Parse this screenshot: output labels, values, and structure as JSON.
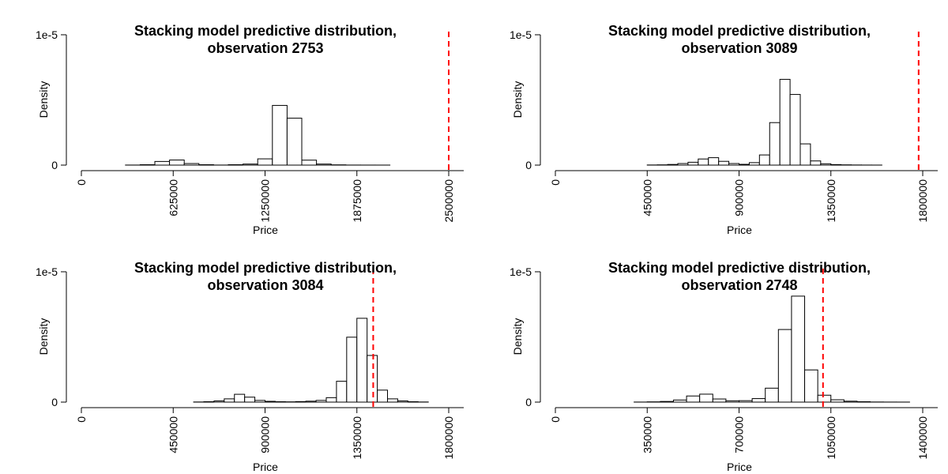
{
  "chart_data": [
    {
      "type": "histogram",
      "title": "Stacking model predictive distribution,",
      "subtitle": "observation 2753",
      "xlabel": "Price",
      "ylabel": "Density",
      "xlim": [
        0,
        2500000
      ],
      "ylim": [
        0,
        1e-05
      ],
      "x_ticks": [
        "0",
        "625000",
        "1250000",
        "1875000",
        "2500000"
      ],
      "y_ticks": [
        "0",
        "1e-5"
      ],
      "bin_width": 100000,
      "bins_start": [
        300000,
        400000,
        500000,
        600000,
        700000,
        800000,
        900000,
        1000000,
        1100000,
        1200000,
        1300000,
        1400000,
        1500000,
        1600000,
        1700000,
        1800000,
        1900000,
        2000000
      ],
      "density": [
        5e-09,
        3e-08,
        2.8e-07,
        3.9e-07,
        1.2e-07,
        3e-08,
        5e-09,
        3e-08,
        8e-08,
        4.8e-07,
        4.58e-06,
        3.6e-06,
        3.8e-07,
        8e-08,
        2e-08,
        5e-09,
        3e-09,
        2e-09
      ],
      "reference_line": 2500000,
      "reference_color": "#ff0000"
    },
    {
      "type": "histogram",
      "title": "Stacking model predictive distribution,",
      "subtitle": "observation 3089",
      "xlabel": "Price",
      "ylabel": "Density",
      "xlim": [
        0,
        1800000
      ],
      "ylim": [
        0,
        1e-05
      ],
      "x_ticks": [
        "0",
        "450000",
        "900000",
        "1350000",
        "1800000"
      ],
      "y_ticks": [
        "0",
        "1e-5"
      ],
      "bin_width": 50000,
      "bins_start": [
        450000,
        500000,
        550000,
        600000,
        650000,
        700000,
        750000,
        800000,
        850000,
        900000,
        950000,
        1000000,
        1050000,
        1100000,
        1150000,
        1200000,
        1250000,
        1300000,
        1350000,
        1400000,
        1450000,
        1500000,
        1550000
      ],
      "density": [
        1e-08,
        2e-08,
        5e-08,
        1.2e-07,
        2.2e-07,
        4.7e-07,
        5.7e-07,
        2.9e-07,
        1.2e-07,
        6e-08,
        1.9e-07,
        7.8e-07,
        3.26e-06,
        6.58e-06,
        5.42e-06,
        1.63e-06,
        3.2e-07,
        1e-07,
        4e-08,
        2e-08,
        1e-08,
        5e-09,
        3e-09
      ],
      "reference_line": 1780000,
      "reference_color": "#ff0000"
    },
    {
      "type": "histogram",
      "title": "Stacking model predictive distribution,",
      "subtitle": "observation 3084",
      "xlabel": "Price",
      "ylabel": "Density",
      "xlim": [
        0,
        1800000
      ],
      "ylim": [
        0,
        1e-05
      ],
      "x_ticks": [
        "0",
        "450000",
        "900000",
        "1350000",
        "1800000"
      ],
      "y_ticks": [
        "0",
        "1e-5"
      ],
      "bin_width": 50000,
      "bins_start": [
        550000,
        600000,
        650000,
        700000,
        750000,
        800000,
        850000,
        900000,
        950000,
        1000000,
        1050000,
        1100000,
        1150000,
        1200000,
        1250000,
        1300000,
        1350000,
        1400000,
        1450000,
        1500000,
        1550000,
        1600000,
        1650000
      ],
      "density": [
        1e-08,
        3e-08,
        9e-08,
        2.5e-07,
        6e-07,
        3.8e-07,
        1.3e-07,
        6e-08,
        3e-08,
        2e-08,
        4e-08,
        7e-08,
        1.3e-07,
        3.4e-07,
        1.6e-06,
        4.98e-06,
        6.43e-06,
        3.58e-06,
        9.2e-07,
        2.5e-07,
        9e-08,
        3e-08,
        1e-08
      ],
      "reference_line": 1430000,
      "reference_color": "#ff0000"
    },
    {
      "type": "histogram",
      "title": "Stacking model predictive distribution,",
      "subtitle": "observation 2748",
      "xlabel": "Price",
      "ylabel": "Density",
      "xlim": [
        0,
        1400000
      ],
      "ylim": [
        0,
        1e-05
      ],
      "x_ticks": [
        "0",
        "350000",
        "700000",
        "1050000",
        "1400000"
      ],
      "y_ticks": [
        "0",
        "1e-5"
      ],
      "bin_width": 50000,
      "bins_start": [
        300000,
        350000,
        400000,
        450000,
        500000,
        550000,
        600000,
        650000,
        700000,
        750000,
        800000,
        850000,
        900000,
        950000,
        1000000,
        1050000,
        1100000,
        1150000,
        1200000,
        1250000,
        1300000
      ],
      "density": [
        5e-09,
        2e-08,
        5e-08,
        1.6e-07,
        4.7e-07,
        6.1e-07,
        2.4e-07,
        1e-07,
        1.1e-07,
        2.7e-07,
        1.07e-06,
        5.57e-06,
        8.13e-06,
        2.47e-06,
        5.3e-07,
        1.8e-07,
        7e-08,
        3e-08,
        1e-08,
        5e-09,
        3e-09
      ],
      "reference_line": 1020000,
      "reference_color": "#ff0000"
    }
  ]
}
